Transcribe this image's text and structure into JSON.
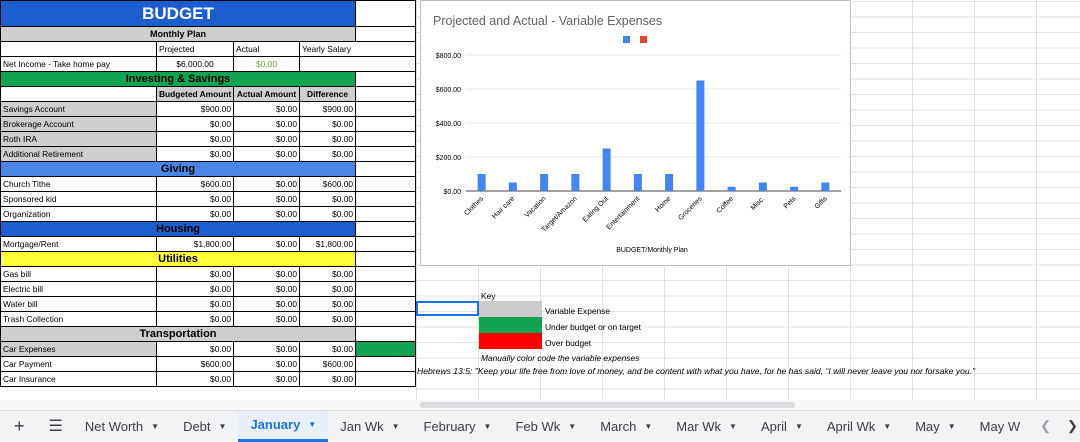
{
  "budget": {
    "title": "BUDGET",
    "monthly_plan": "Monthly Plan",
    "col_projected": "Projected",
    "col_actual": "Actual",
    "col_yearly": "Yearly Salary",
    "net_income_label": "Net Income - Take home pay",
    "net_income_projected": "$6,000.00",
    "net_income_actual": "$0.00",
    "sub_headers": [
      "Budgeted Amount",
      "Actual Amount",
      "Difference"
    ],
    "sections": [
      {
        "title": "Investing & Savings",
        "color": "green",
        "show_sub": true,
        "rows": [
          {
            "label": "Savings Account",
            "b": "$900.00",
            "a": "$0.00",
            "d": "$900.00"
          },
          {
            "label": "Brokerage Account",
            "b": "$0.00",
            "a": "$0.00",
            "d": "$0.00"
          },
          {
            "label": "Roth IRA",
            "b": "$0.00",
            "a": "$0.00",
            "d": "$0.00"
          },
          {
            "label": "Additional Retirement",
            "b": "$0.00",
            "a": "$0.00",
            "d": "$0.00"
          }
        ]
      },
      {
        "title": "Giving",
        "color": "blue2",
        "show_sub": false,
        "rows": [
          {
            "label": "Church Tithe",
            "b": "$600.00",
            "a": "$0.00",
            "d": "$600.00"
          },
          {
            "label": "Sponsored kid",
            "b": "$0.00",
            "a": "$0.00",
            "d": "$0.00"
          },
          {
            "label": "Organization",
            "b": "$0.00",
            "a": "$0.00",
            "d": "$0.00"
          }
        ]
      },
      {
        "title": "Housing",
        "color": "blue",
        "show_sub": false,
        "rows": [
          {
            "label": "Mortgage/Rent",
            "b": "$1,800.00",
            "a": "$0.00",
            "d": "$1,800.00"
          }
        ]
      },
      {
        "title": "Utilities",
        "color": "yellow",
        "show_sub": false,
        "rows": [
          {
            "label": "Gas bill",
            "b": "$0.00",
            "a": "$0.00",
            "d": "$0.00"
          },
          {
            "label": "Electric bill",
            "b": "$0.00",
            "a": "$0.00",
            "d": "$0.00"
          },
          {
            "label": "Water bill",
            "b": "$0.00",
            "a": "$0.00",
            "d": "$0.00"
          },
          {
            "label": "Trash Collection",
            "b": "$0.00",
            "a": "$0.00",
            "d": "$0.00"
          }
        ]
      },
      {
        "title": "Transportation",
        "color": "gray",
        "show_sub": false,
        "rows": [
          {
            "label": "Car Expenses",
            "b": "$0.00",
            "a": "$0.00",
            "d": "$0.00",
            "variable": true,
            "status": "green"
          },
          {
            "label": "Car Payment",
            "b": "$600.00",
            "a": "$0.00",
            "d": "$600.00"
          },
          {
            "label": "Car Insurance",
            "b": "$0.00",
            "a": "$0.00",
            "d": "$0.00"
          }
        ]
      }
    ]
  },
  "key": {
    "title": "Key",
    "items": [
      {
        "label": "Variable Expense",
        "color": "#cccccc"
      },
      {
        "label": "Under budget or on target",
        "color": "#13a453"
      },
      {
        "label": "Over budget",
        "color": "#ff0000"
      }
    ],
    "note": "Manually color code the variable expenses",
    "verse": "Hebrews 13:5: \"Keep your life free from love of money, and be content with what you have, for he has said, “I will never leave you nor forsake you.”"
  },
  "chart_data": {
    "type": "bar",
    "title": "Projected and Actual - Variable Expenses",
    "xlabel": "BUDGET/Monthly Plan",
    "ylabel": "",
    "categories": [
      "Clothes",
      "Hair care",
      "Vacation",
      "Target/Amazon",
      "Eating Out",
      "Entertainment",
      "Home",
      "Groceries",
      "Coffee",
      "Misc.",
      "Pets",
      "Gifts"
    ],
    "series": [
      {
        "name": "",
        "color": "#4285f4",
        "values": [
          100,
          50,
          100,
          100,
          250,
          100,
          100,
          650,
          25,
          50,
          25,
          50
        ]
      },
      {
        "name": "",
        "color": "#ea4335",
        "values": [
          0,
          0,
          0,
          0,
          0,
          0,
          0,
          0,
          0,
          0,
          0,
          0
        ]
      }
    ],
    "ylim": [
      0,
      800
    ],
    "yticks": [
      "$0.00",
      "$200.00",
      "$400.00",
      "$600.00",
      "$800.00"
    ],
    "legend": "top-center",
    "grid": true
  },
  "tabs": {
    "items": [
      "Net Worth",
      "Debt",
      "January",
      "Jan Wk",
      "February",
      "Feb Wk",
      "March",
      "Mar Wk",
      "April",
      "April Wk",
      "May",
      "May W"
    ],
    "active": "January",
    "add_icon": "plus-icon",
    "menu_icon": "hamburger-icon"
  }
}
